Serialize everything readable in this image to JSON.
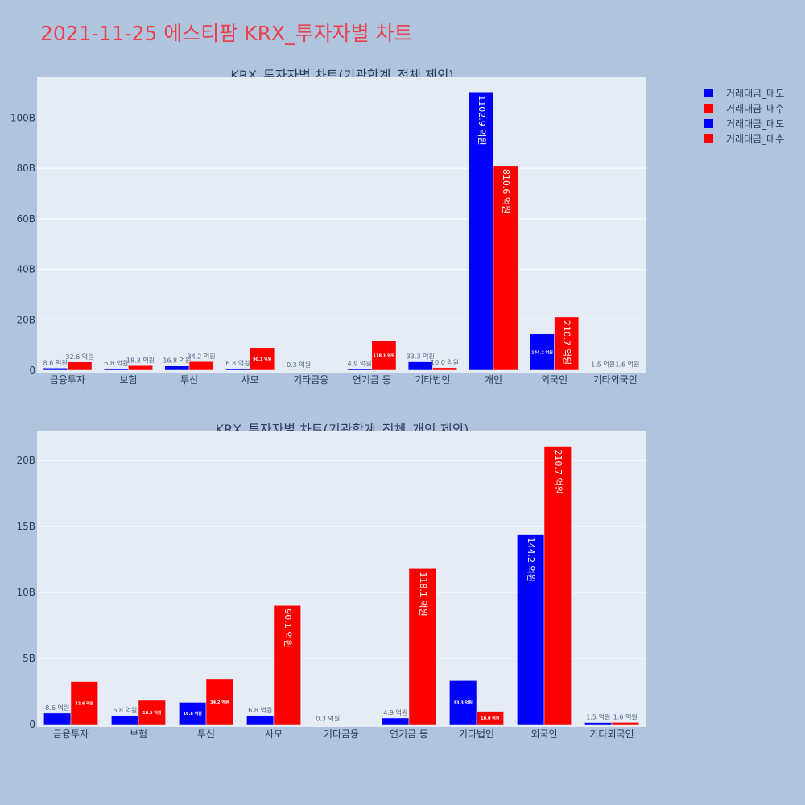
{
  "title": "2021-11-25 에스티팜 KRX_투자자별 차트",
  "legend": [
    {
      "label": "거래대금_매도",
      "color": "#0000ff"
    },
    {
      "label": "거래대금_매수",
      "color": "#ff0000"
    },
    {
      "label": "거래대금_매도",
      "color": "#0000ff"
    },
    {
      "label": "거래대금_매수",
      "color": "#ff0000"
    }
  ],
  "chart_data": [
    {
      "type": "bar",
      "title": "KRX_투자자별 차트(기관합계_전체 제외)",
      "categories": [
        "금융투자",
        "보험",
        "투신",
        "사모",
        "기타금융",
        "연기금 등",
        "기타법인",
        "개인",
        "외국인",
        "기타외국인"
      ],
      "series": [
        {
          "name": "거래대금_매도",
          "color": "#0000ff",
          "values": [
            0.86,
            0.68,
            1.68,
            0.68,
            0.03,
            0.49,
            3.33,
            110.29,
            14.42,
            0.15
          ],
          "labels": [
            "8.6 억원",
            "6.8 억원",
            "16.8 억원",
            "6.8 억원",
            "0.3 억원",
            "4.9 억원",
            "33.3 억원",
            "1102.9 억원",
            "144.2 억원",
            "1.5 억원"
          ]
        },
        {
          "name": "거래대금_매수",
          "color": "#ff0000",
          "values": [
            3.26,
            1.83,
            3.42,
            9.01,
            0.0,
            11.81,
            1.0,
            81.06,
            21.07,
            0.16
          ],
          "labels": [
            "32.6 억원",
            "18.3 억원",
            "34.2 억원",
            "90.1 억원",
            "",
            "118.1 억원",
            "10.0 억원",
            "810.6 억원",
            "210.7 억원",
            "1.6 억원"
          ]
        }
      ],
      "yticks": [
        "0",
        "20B",
        "40B",
        "60B",
        "80B",
        "100B"
      ],
      "ytick_values": [
        0,
        20,
        40,
        60,
        80,
        100
      ],
      "ylim": [
        0,
        116.1
      ]
    },
    {
      "type": "bar",
      "title": "KRX_투자자별 차트(기관합계_전체_개인 제외)",
      "categories": [
        "금융투자",
        "보험",
        "투신",
        "사모",
        "기타금융",
        "연기금 등",
        "기타법인",
        "외국인",
        "기타외국인"
      ],
      "series": [
        {
          "name": "거래대금_매도",
          "color": "#0000ff",
          "values": [
            0.86,
            0.68,
            1.68,
            0.68,
            0.03,
            0.49,
            3.33,
            14.42,
            0.15
          ],
          "labels": [
            "8.6 억원",
            "6.8 억원",
            "16.8 억원",
            "6.8 억원",
            "0.3 억원",
            "4.9 억원",
            "33.3 억원",
            "144.2 억원",
            "1.5 억원"
          ]
        },
        {
          "name": "거래대금_매수",
          "color": "#ff0000",
          "values": [
            3.26,
            1.83,
            3.42,
            9.01,
            0.0,
            11.81,
            1.0,
            21.07,
            0.16
          ],
          "labels": [
            "32.6 억원",
            "18.3 억원",
            "34.2 억원",
            "90.1 억원",
            "",
            "118.1 억원",
            "10.0 억원",
            "210.7 억원",
            "1.6 억원"
          ]
        }
      ],
      "yticks": [
        "0",
        "5B",
        "10B",
        "15B",
        "20B"
      ],
      "ytick_values": [
        0,
        5,
        10,
        15,
        20
      ],
      "ylim": [
        0,
        22.2
      ]
    }
  ]
}
